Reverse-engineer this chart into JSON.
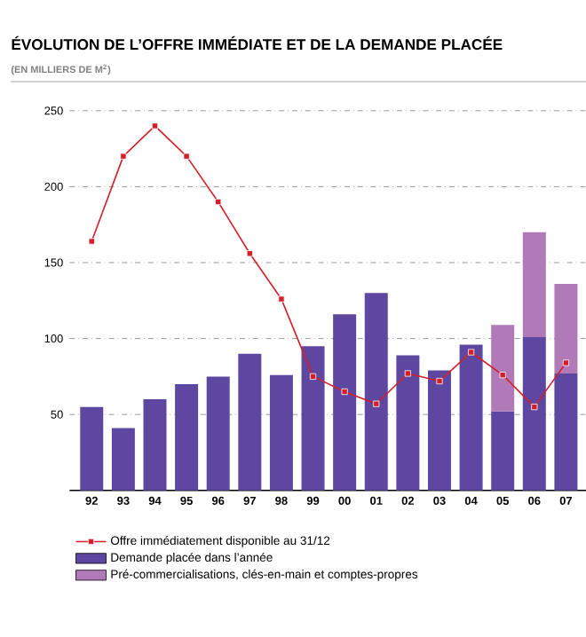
{
  "chart_data": {
    "type": "bar",
    "title": "ÉVOLUTION DE L’OFFRE IMMÉDIATE ET DE LA DEMANDE PLACÉE",
    "subtitle": "(EN MILLIERS DE M$^{2}$)",
    "categories": [
      "92",
      "93",
      "94",
      "95",
      "96",
      "97",
      "98",
      "99",
      "00",
      "01",
      "02",
      "03",
      "04",
      "05",
      "06",
      "07"
    ],
    "stacked": true,
    "series": [
      {
        "name": "Demande placée dans l’année",
        "color": "#5e47a0",
        "values": [
          55,
          41,
          60,
          70,
          75,
          90,
          76,
          95,
          116,
          130,
          89,
          79,
          96,
          52,
          101,
          77
        ]
      },
      {
        "name": "Pré-commercialisations, clés-en-main et comptes-propres",
        "color": "#b07ab8",
        "values": [
          null,
          null,
          null,
          null,
          null,
          null,
          null,
          null,
          null,
          null,
          null,
          null,
          null,
          57,
          69,
          59
        ]
      },
      {
        "name": "Offre immédiatement disponible au 31/12",
        "type": "line",
        "color": "#d41f2a",
        "marker": "square",
        "values": [
          164,
          220,
          240,
          220,
          190,
          156,
          126,
          75,
          65,
          57,
          77,
          72,
          91,
          76,
          55,
          84
        ]
      }
    ],
    "ylim": [
      0,
      250
    ],
    "yticks": [
      50,
      100,
      150,
      200,
      250
    ],
    "grid": "y",
    "legend": "bottom"
  }
}
